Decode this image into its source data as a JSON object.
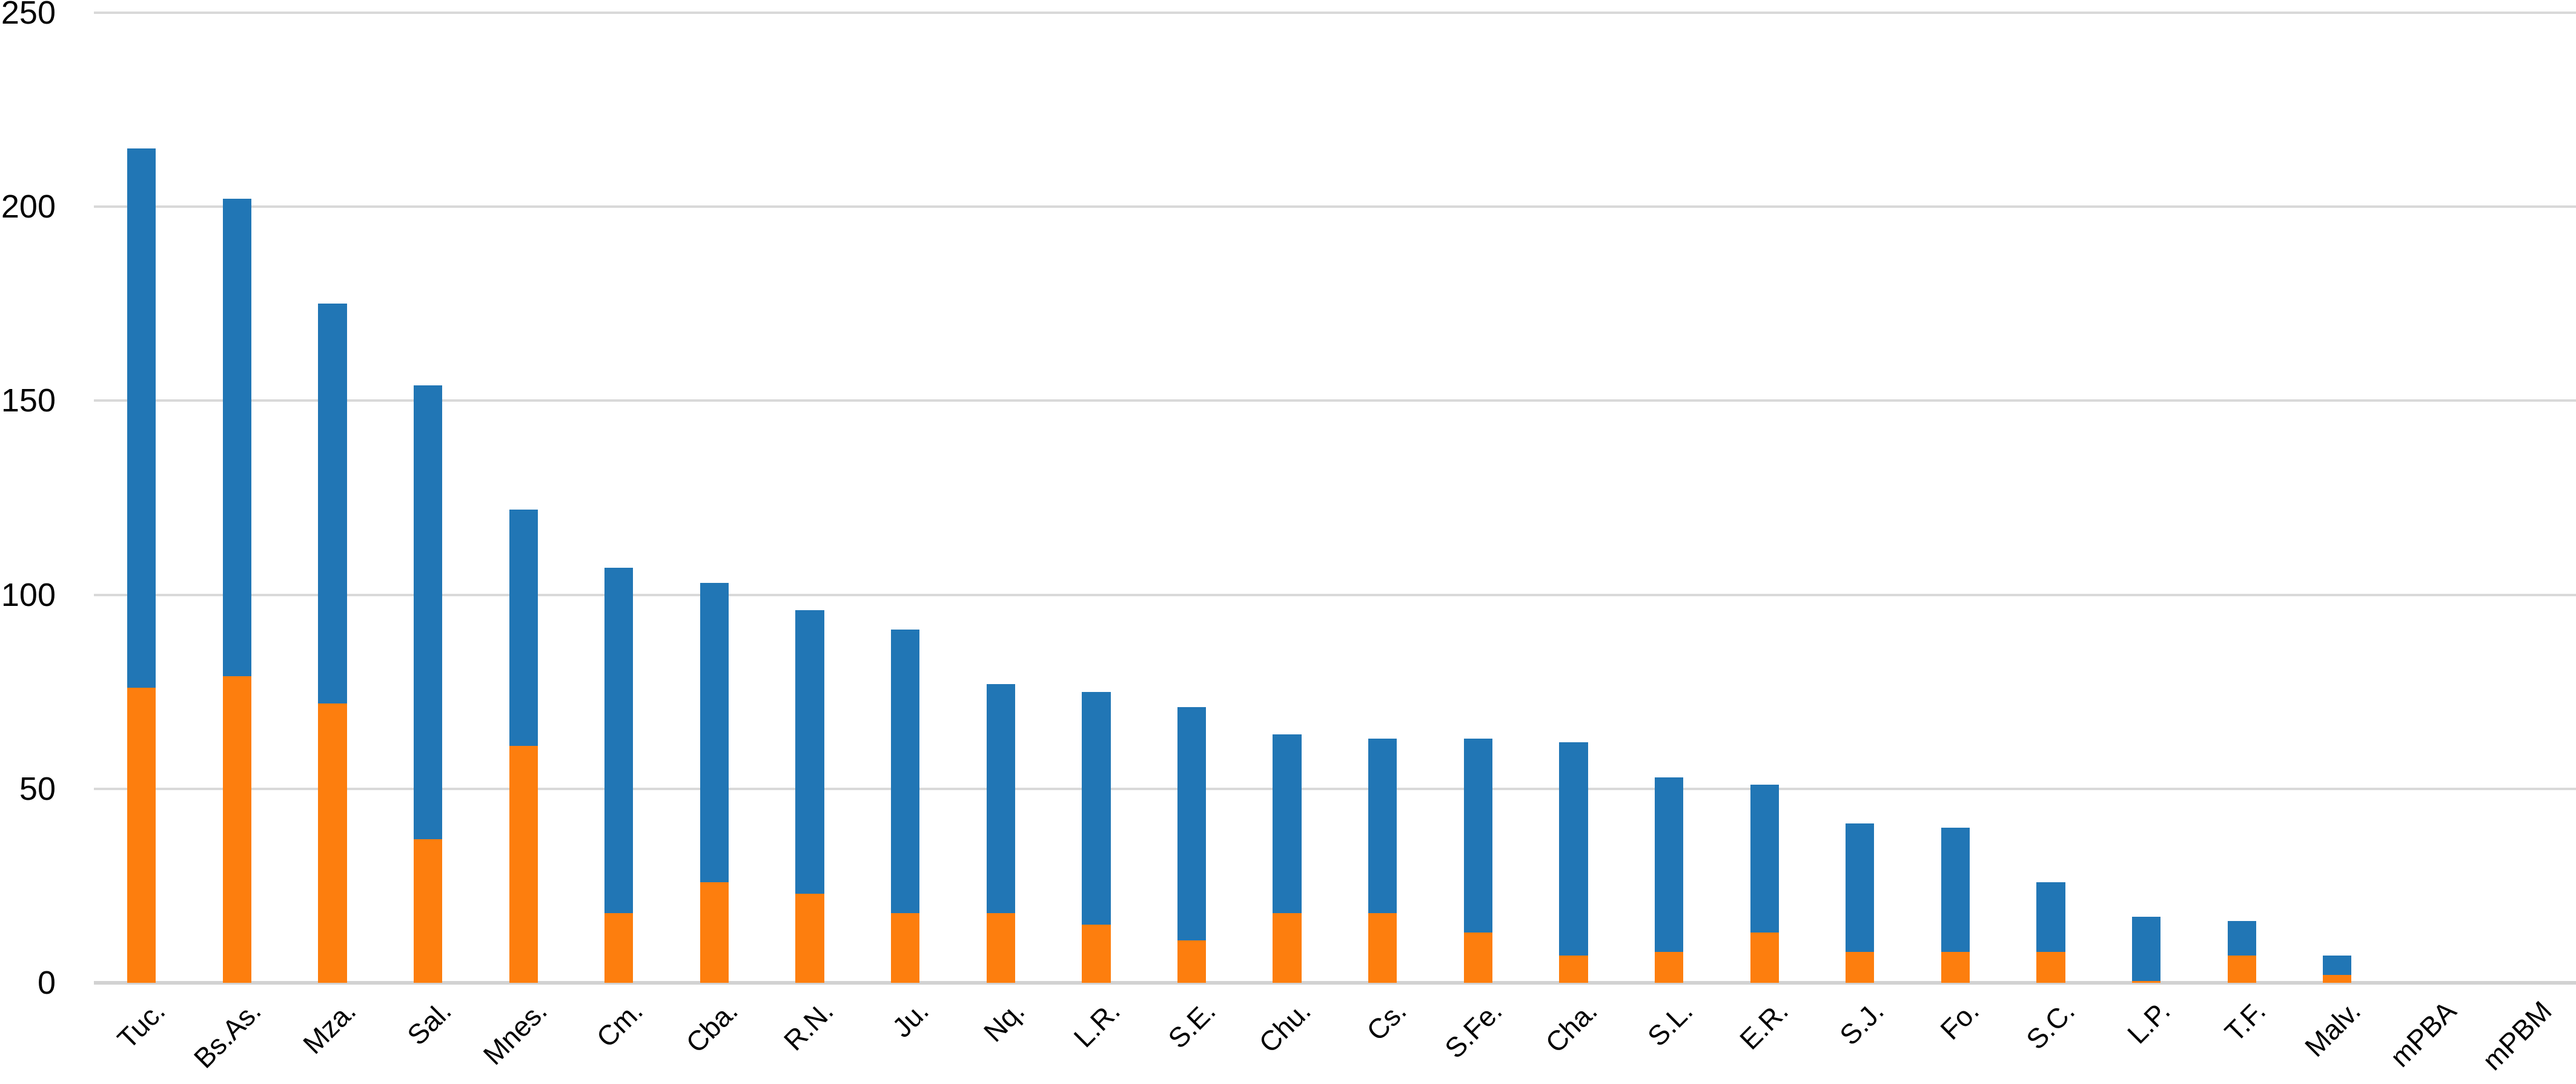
{
  "chart_data": {
    "type": "bar",
    "stacked": true,
    "title": "",
    "xlabel": "",
    "ylabel": "",
    "legend": "none",
    "grid": true,
    "ylim": [
      0,
      250
    ],
    "y_ticks": [
      0,
      50,
      100,
      150,
      200,
      250
    ],
    "y_tick_labels": [
      "0",
      "50",
      "100",
      "150",
      "200",
      "250"
    ],
    "categories": [
      "Tuc.",
      "Bs.As.",
      "Mza.",
      "Sal.",
      "Mnes.",
      "Cm.",
      "Cba.",
      "R.N.",
      "Ju.",
      "Nq.",
      "L.R.",
      "S.E.",
      "Chu.",
      "Cs.",
      "S.Fe.",
      "Cha.",
      "S.L.",
      "E.R.",
      "S.J.",
      "Fo.",
      "S.C.",
      "L.P.",
      "T.F.",
      "Malv.",
      "mPBA",
      "mPBM"
    ],
    "series": [
      {
        "name": "orange-bottom-segment",
        "color": "#fd7e0e",
        "values": [
          76,
          79,
          72,
          37,
          61,
          18,
          26,
          23,
          18,
          18,
          15,
          11,
          18,
          18,
          13,
          7,
          8,
          13,
          8,
          8,
          8,
          0.5,
          7,
          2,
          0,
          0
        ]
      },
      {
        "name": "blue-top-segment",
        "color": "#2176b5",
        "values": [
          139,
          123,
          103,
          117,
          61,
          89,
          77,
          73,
          73,
          59,
          60,
          60,
          46,
          45,
          50,
          55,
          45,
          38,
          33,
          32,
          18,
          16.5,
          9,
          5,
          0,
          0
        ]
      }
    ],
    "totals": [
      215,
      202,
      175,
      154,
      122,
      107,
      103,
      96,
      91,
      77,
      75,
      71,
      64,
      63,
      63,
      62,
      53,
      51,
      41,
      40,
      26,
      17,
      16,
      7,
      0,
      0
    ],
    "colors": {
      "gridline": "#d9d9d9",
      "axis_line": "#d2d2d2",
      "background": "#ffffff",
      "text": "#000000"
    }
  }
}
